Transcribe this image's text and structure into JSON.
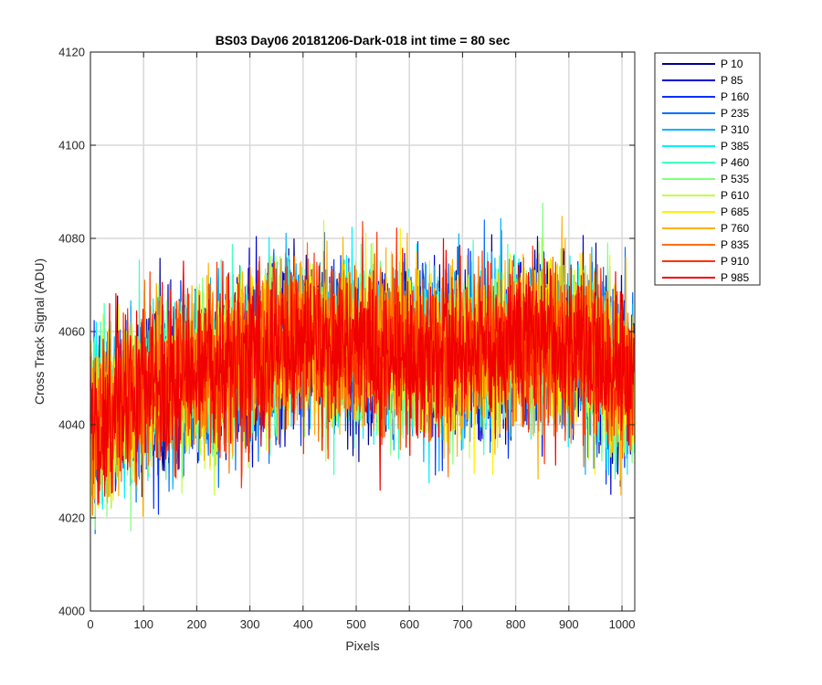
{
  "chart_data": {
    "type": "line",
    "title": "BS03 Day06 20181206-Dark-018 int time = 80 sec",
    "xlabel": "Pixels",
    "ylabel": "Cross Track Signal (ADU)",
    "xlim": [
      0,
      1024
    ],
    "ylim": [
      4000,
      4120
    ],
    "xticks": [
      0,
      100,
      200,
      300,
      400,
      500,
      600,
      700,
      800,
      900,
      1000
    ],
    "yticks": [
      4000,
      4020,
      4040,
      4060,
      4080,
      4100,
      4120
    ],
    "grid": true,
    "legend_position": "outside-top-right",
    "series": [
      {
        "name": "P 10",
        "color": "#00008F"
      },
      {
        "name": "P 85",
        "color": "#0000D4"
      },
      {
        "name": "P 160",
        "color": "#0030FF"
      },
      {
        "name": "P 235",
        "color": "#0070FF"
      },
      {
        "name": "P 310",
        "color": "#00B0FF"
      },
      {
        "name": "P 385",
        "color": "#00F0FF"
      },
      {
        "name": "P 460",
        "color": "#40FFC0"
      },
      {
        "name": "P 535",
        "color": "#80FF80"
      },
      {
        "name": "P 610",
        "color": "#C0FF40"
      },
      {
        "name": "P 685",
        "color": "#FFF000"
      },
      {
        "name": "P 760",
        "color": "#FFB000"
      },
      {
        "name": "P 835",
        "color": "#FF7000"
      },
      {
        "name": "P 910",
        "color": "#FF3000"
      },
      {
        "name": "P 985",
        "color": "#F00000"
      }
    ],
    "trend": {
      "x": [
        0,
        100,
        200,
        300,
        400,
        500,
        600,
        700,
        800,
        900,
        1024
      ],
      "y": [
        4040,
        4048,
        4051,
        4055,
        4058,
        4057,
        4056,
        4055,
        4058,
        4058,
        4049
      ]
    },
    "noise_sigma": 8.5,
    "samples_per_series": 1024
  }
}
